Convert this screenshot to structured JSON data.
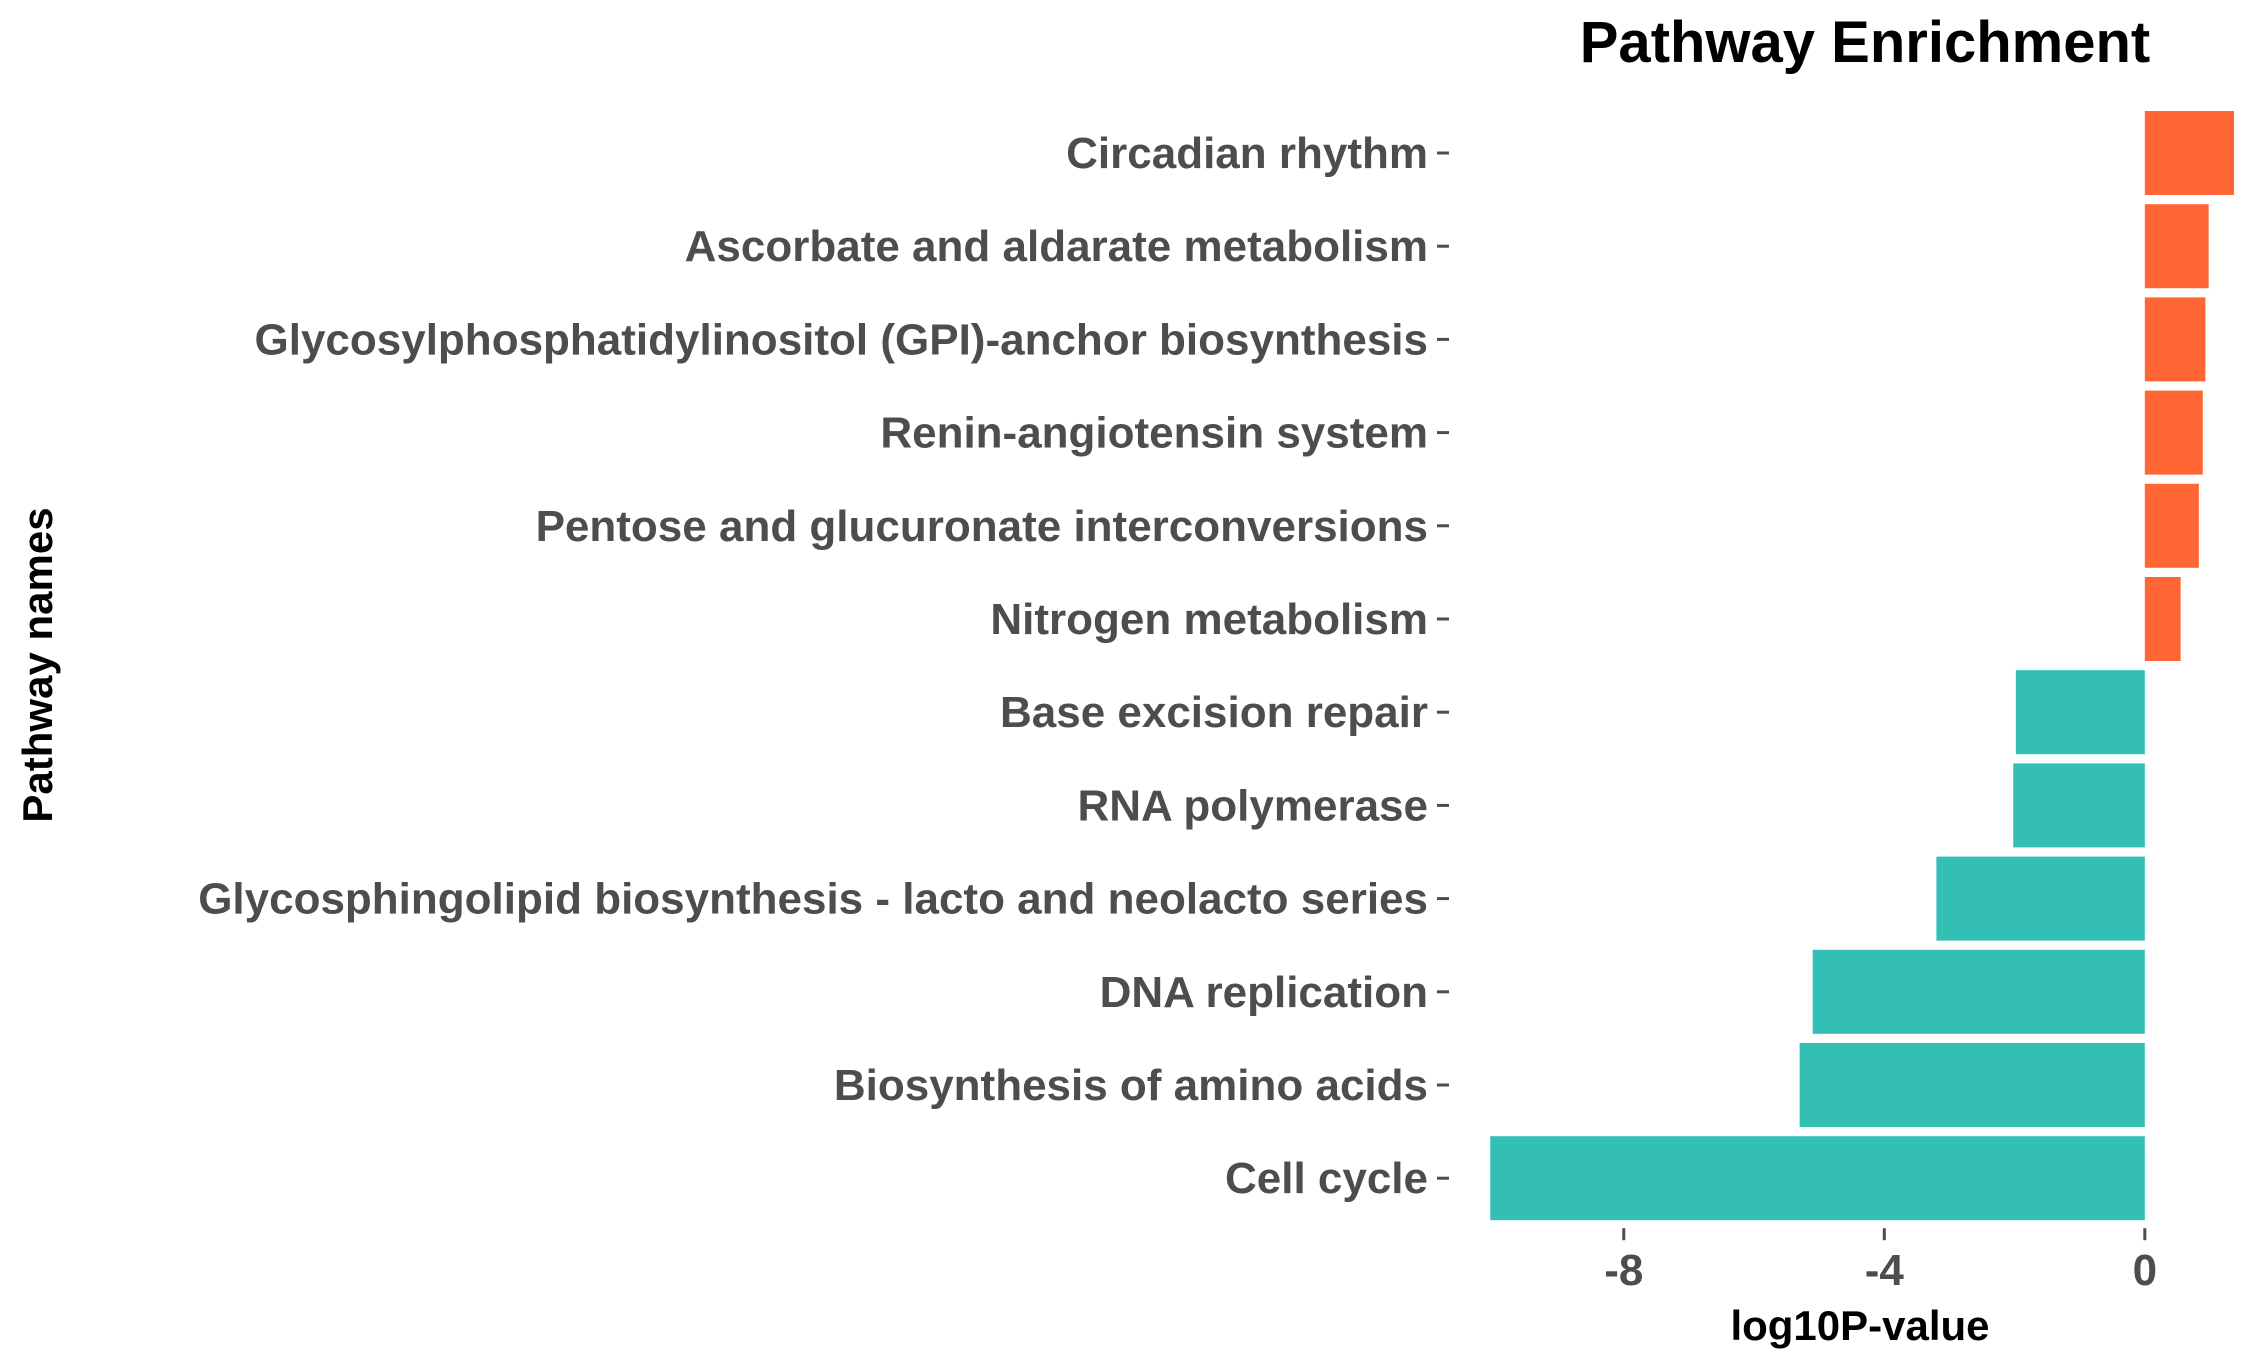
{
  "chart_data": {
    "type": "bar",
    "orientation": "horizontal",
    "title": "Pathway Enrichment",
    "xlabel": "log10P-value",
    "ylabel": "Pathway names",
    "xlim": [
      -10.1,
      1.4
    ],
    "xticks": [
      -8,
      -4,
      0
    ],
    "xtick_labels": [
      "-8",
      "-4",
      "0"
    ],
    "grid": false,
    "legend": "none",
    "colors": {
      "positive": "#ff6633",
      "negative": "#33bfb3"
    },
    "categories": [
      "Circadian rhythm",
      "Ascorbate and aldarate metabolism",
      "Glycosylphosphatidylinositol (GPI)-anchor biosynthesis",
      "Renin-angiotensin system",
      "Pentose and glucuronate interconversions",
      "Nitrogen metabolism",
      "Base excision repair",
      "RNA polymerase",
      "Glycosphingolipid biosynthesis - lacto and neolacto series",
      "DNA replication",
      "Biosynthesis of amino acids",
      "Cell cycle"
    ],
    "values": [
      1.37,
      0.98,
      0.93,
      0.89,
      0.83,
      0.55,
      -1.98,
      -2.02,
      -3.2,
      -5.1,
      -5.3,
      -10.05
    ]
  }
}
